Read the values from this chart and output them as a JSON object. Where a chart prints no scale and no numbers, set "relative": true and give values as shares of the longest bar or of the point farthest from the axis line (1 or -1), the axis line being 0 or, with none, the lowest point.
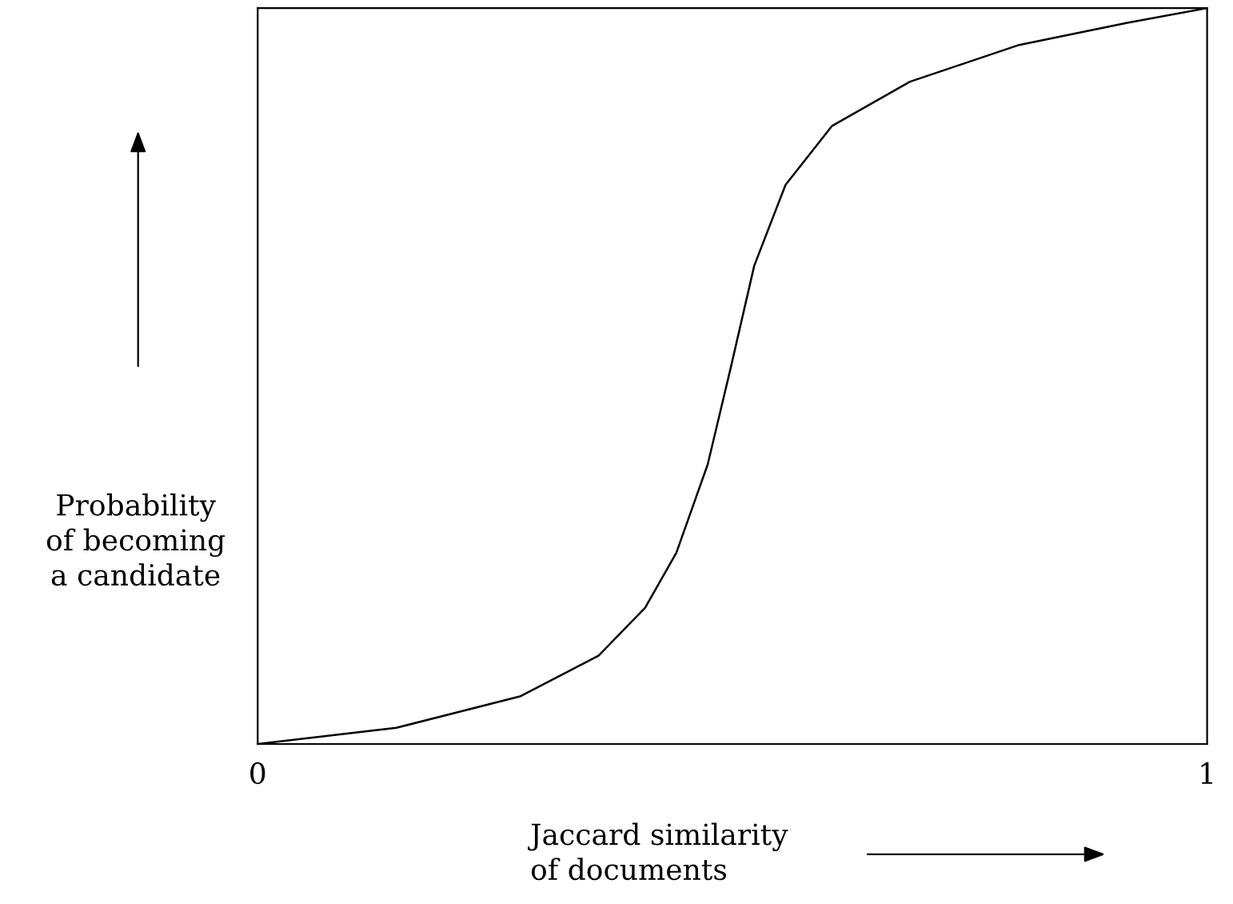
{
  "chart_data": {
    "type": "line",
    "relative": true,
    "xlabel": "Jaccard similarity\nof documents",
    "ylabel": "Probability\nof becoming\na candidate",
    "x": [
      0,
      0.146,
      0.277,
      0.359,
      0.408,
      0.441,
      0.474,
      0.498,
      0.523,
      0.556,
      0.605,
      0.687,
      0.802,
      0.916,
      1
    ],
    "values": [
      0,
      0.022,
      0.065,
      0.12,
      0.185,
      0.26,
      0.38,
      0.51,
      0.65,
      0.76,
      0.84,
      0.9,
      0.95,
      0.98,
      1
    ],
    "xlim": [
      0,
      1
    ],
    "xticks": [
      0,
      1
    ],
    "tick_labels": "x",
    "color": "#000000"
  }
}
